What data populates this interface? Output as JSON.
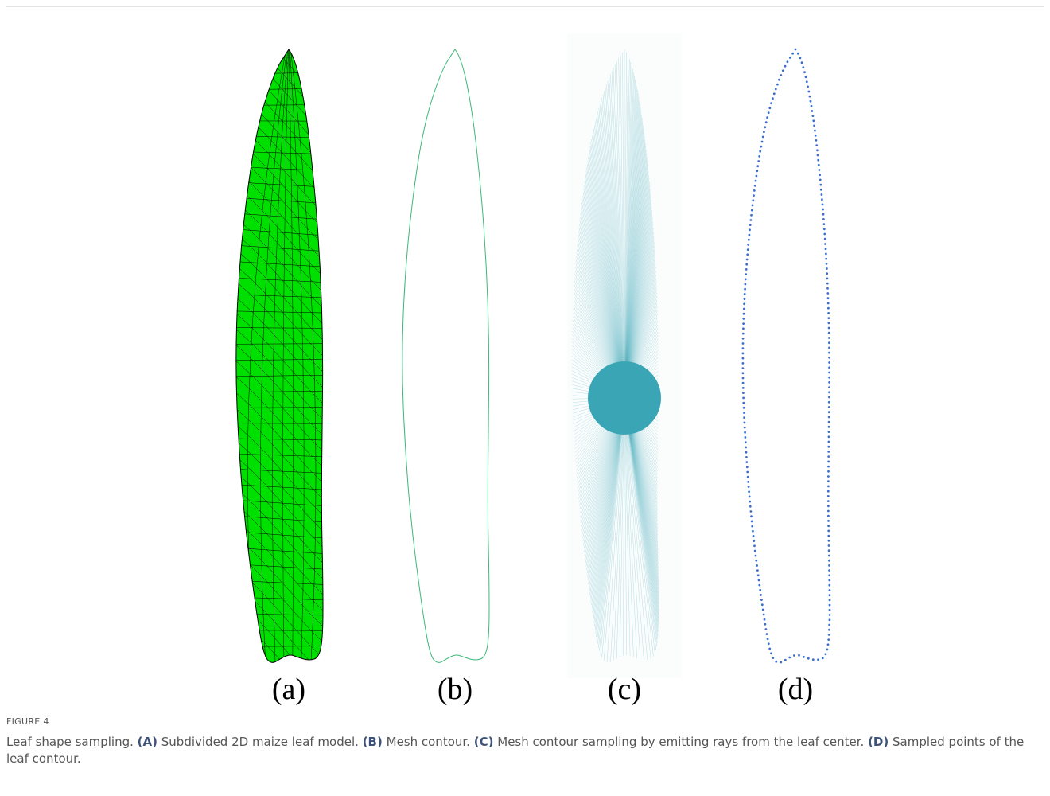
{
  "figure": {
    "panels": [
      {
        "label": "(a)"
      },
      {
        "label": "(b)"
      },
      {
        "label": "(c)"
      },
      {
        "label": "(d)"
      }
    ],
    "label": "FIGURE 4",
    "caption": {
      "intro": "Leaf shape sampling.",
      "items": [
        {
          "key": "(A)",
          "text": "Subdivided 2D maize leaf model."
        },
        {
          "key": "(B)",
          "text": "Mesh contour."
        },
        {
          "key": "(C)",
          "text": "Mesh contour sampling by emitting rays from the leaf center."
        },
        {
          "key": "(D)",
          "text": "Sampled points of the leaf contour."
        }
      ]
    }
  }
}
